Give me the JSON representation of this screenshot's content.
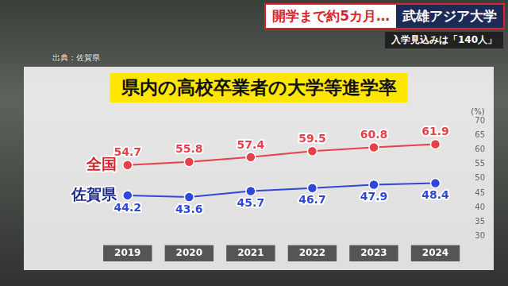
{
  "header": {
    "headline": [
      "開学まで約5カ月…",
      "武雄アジア大学"
    ],
    "subhead": "入学見込みは「140人」",
    "source": "出典：佐賀県"
  },
  "chart_data": {
    "type": "line",
    "title": "県内の高校卒業者の大学等進学率",
    "y_label": "(%)",
    "categories": [
      "2019",
      "2020",
      "2021",
      "2022",
      "2023",
      "2024"
    ],
    "series": [
      {
        "name": "全国",
        "color": "#e8404a",
        "values": [
          54.7,
          55.8,
          57.4,
          59.5,
          60.8,
          61.9
        ]
      },
      {
        "name": "佐賀県",
        "color": "#2f48d8",
        "values": [
          44.2,
          43.6,
          45.7,
          46.7,
          47.9,
          48.4
        ]
      }
    ],
    "ylim": [
      30,
      70
    ],
    "yticks": [
      30,
      35,
      40,
      45,
      50,
      55,
      60,
      65,
      70
    ],
    "grid": false,
    "data_labels": true,
    "marker": "circle"
  }
}
